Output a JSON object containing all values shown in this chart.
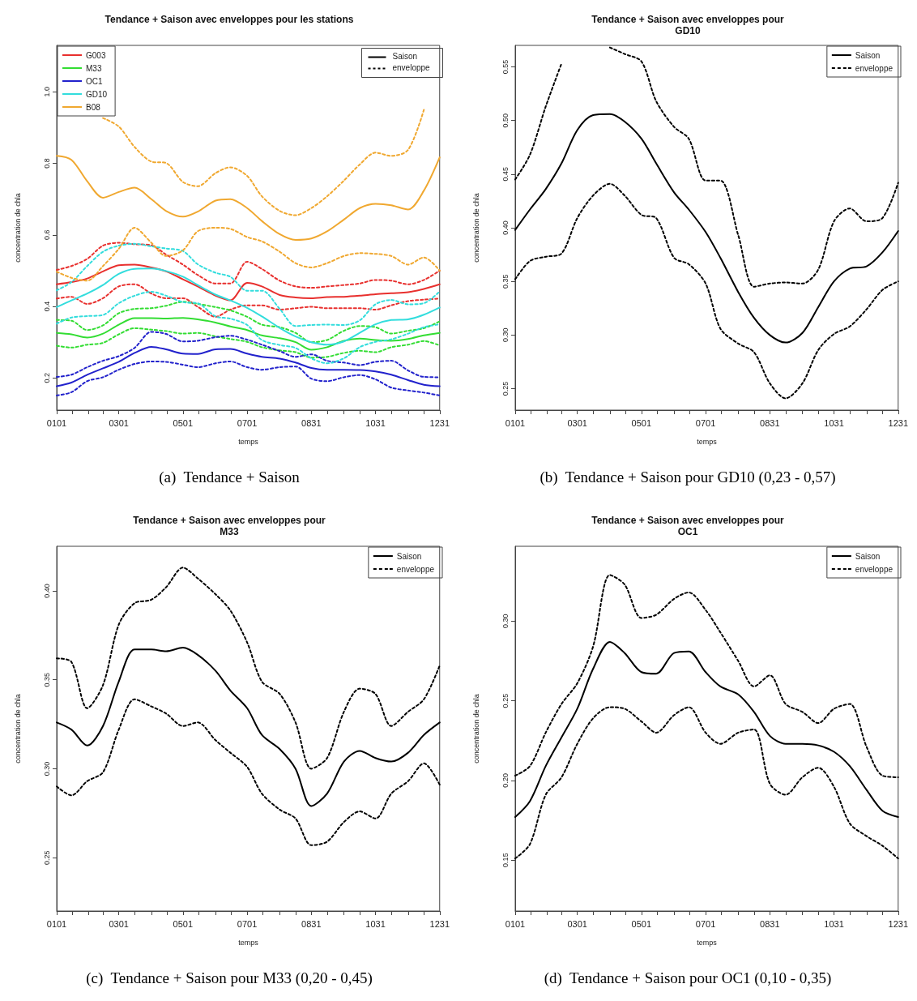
{
  "chart_data": [
    {
      "type": "line",
      "title": "Tendance + Saison avec enveloppes pour les stations",
      "xlabel": "temps",
      "ylabel": "concentration de chla",
      "marker": "none",
      "legend": "top left",
      "annotations": [
        "(a)  Tendance + Saison",
        "Saison",
        "enveloppe"
      ],
      "xlim": [
        "--01-01",
        "--12-31"
      ],
      "xticks": [
        {
          "value": "--01-01",
          "label": "0101"
        },
        {
          "value": "--01-16",
          "label": null
        },
        {
          "value": "--01-31",
          "label": null
        },
        {
          "value": "--02-14",
          "label": null
        },
        {
          "value": "--03-01",
          "label": "0301"
        },
        {
          "value": "--03-16",
          "label": null
        },
        {
          "value": "--04-01",
          "label": null
        },
        {
          "value": "--04-16",
          "label": null
        },
        {
          "value": "--05-01",
          "label": "0501"
        },
        {
          "value": "--05-16",
          "label": null
        },
        {
          "value": "--06-01",
          "label": null
        },
        {
          "value": "--06-16",
          "label": null
        },
        {
          "value": "--07-01",
          "label": "0701"
        },
        {
          "value": "--07-16",
          "label": null
        },
        {
          "value": "--08-01",
          "label": null
        },
        {
          "value": "--08-16",
          "label": null
        },
        {
          "value": "--08-31",
          "label": "0831"
        },
        {
          "value": "--09-15",
          "label": null
        },
        {
          "value": "--10-01",
          "label": null
        },
        {
          "value": "--10-16",
          "label": null
        },
        {
          "value": "--10-31",
          "label": "1031"
        },
        {
          "value": "--11-15",
          "label": null
        },
        {
          "value": "--12-01",
          "label": null
        },
        {
          "value": "--12-16",
          "label": null
        },
        {
          "value": "--12-31",
          "label": "1231"
        }
      ],
      "ylim": [
        0.11,
        1.13
      ],
      "yticks": [
        0.2,
        0.4,
        0.6,
        0.8,
        {
          "value": 1,
          "label": "1.0"
        }
      ],
      "x": [
        "--01-01",
        "--01-15",
        "--01-30",
        "--02-14",
        "--03-01",
        "--03-16",
        "--04-01",
        "--04-15",
        "--05-01",
        "--05-15",
        "--06-01",
        "--06-15",
        "--07-01",
        "--07-15",
        "--08-01",
        "--08-16",
        "--08-31",
        "--09-15",
        "--10-01",
        "--10-16",
        "--10-31",
        "--11-15",
        "--12-01",
        "--12-16",
        "--12-31"
      ],
      "series": [
        {
          "name": "G003",
          "color": "#e8302e",
          "line_style": "solid",
          "values": [
            0.462,
            0.468,
            0.478,
            0.498,
            0.515,
            0.517,
            0.509,
            0.498,
            0.476,
            0.456,
            0.43,
            0.417,
            0.466,
            0.456,
            0.432,
            0.425,
            0.423,
            0.426,
            0.427,
            0.43,
            0.434,
            0.437,
            0.44,
            0.449,
            0.462
          ]
        },
        {
          "color": "#e8302e",
          "line_style": "dotted",
          "values": [
            0.502,
            0.513,
            0.533,
            0.57,
            0.578,
            0.574,
            0.571,
            0.545,
            0.517,
            0.488,
            0.464,
            0.464,
            0.525,
            0.505,
            0.472,
            0.456,
            0.452,
            0.456,
            0.46,
            0.464,
            0.474,
            0.472,
            0.462,
            0.474,
            0.5
          ]
        },
        {
          "color": "#e8302e",
          "line_style": "dotted",
          "values": [
            0.422,
            0.427,
            0.407,
            0.423,
            0.456,
            0.462,
            0.436,
            0.423,
            0.423,
            0.399,
            0.371,
            0.391,
            0.403,
            0.403,
            0.391,
            0.395,
            0.399,
            0.395,
            0.395,
            0.395,
            0.391,
            0.403,
            0.415,
            0.419,
            0.422
          ]
        },
        {
          "name": "M33",
          "color": "#33dd33",
          "line_style": "solid",
          "values": [
            0.326,
            0.322,
            0.313,
            0.324,
            0.349,
            0.367,
            0.367,
            0.366,
            0.368,
            0.364,
            0.355,
            0.344,
            0.334,
            0.319,
            0.311,
            0.3,
            0.279,
            0.286,
            0.304,
            0.31,
            0.306,
            0.304,
            0.309,
            0.319,
            0.326
          ]
        },
        {
          "color": "#33dd33",
          "line_style": "dotted",
          "values": [
            0.362,
            0.36,
            0.334,
            0.347,
            0.381,
            0.393,
            0.395,
            0.402,
            0.413,
            0.407,
            0.398,
            0.389,
            0.371,
            0.349,
            0.342,
            0.326,
            0.3,
            0.306,
            0.332,
            0.345,
            0.342,
            0.324,
            0.332,
            0.339,
            0.358
          ]
        },
        {
          "color": "#33dd33",
          "line_style": "dotted",
          "values": [
            0.29,
            0.285,
            0.293,
            0.298,
            0.322,
            0.339,
            0.335,
            0.331,
            0.324,
            0.326,
            0.316,
            0.309,
            0.301,
            0.286,
            0.277,
            0.272,
            0.257,
            0.259,
            0.27,
            0.276,
            0.272,
            0.286,
            0.293,
            0.303,
            0.291
          ]
        },
        {
          "name": "OC1",
          "color": "#2222cc",
          "line_style": "solid",
          "values": [
            0.177,
            0.187,
            0.209,
            0.227,
            0.245,
            0.27,
            0.287,
            0.28,
            0.268,
            0.267,
            0.28,
            0.281,
            0.268,
            0.259,
            0.254,
            0.243,
            0.228,
            0.223,
            0.223,
            0.222,
            0.218,
            0.209,
            0.194,
            0.181,
            0.177
          ]
        },
        {
          "color": "#2222cc",
          "line_style": "dotted",
          "values": [
            0.203,
            0.209,
            0.23,
            0.248,
            0.261,
            0.284,
            0.329,
            0.323,
            0.302,
            0.304,
            0.314,
            0.318,
            0.307,
            0.293,
            0.275,
            0.259,
            0.266,
            0.248,
            0.243,
            0.236,
            0.245,
            0.248,
            0.221,
            0.203,
            0.202
          ]
        },
        {
          "color": "#2222cc",
          "line_style": "dotted",
          "values": [
            0.151,
            0.16,
            0.191,
            0.202,
            0.223,
            0.239,
            0.246,
            0.245,
            0.237,
            0.23,
            0.241,
            0.246,
            0.23,
            0.223,
            0.23,
            0.232,
            0.198,
            0.191,
            0.202,
            0.208,
            0.196,
            0.173,
            0.165,
            0.159,
            0.151
          ]
        },
        {
          "name": "GD10",
          "color": "#33dddd",
          "line_style": "solid",
          "values": [
            0.398,
            0.417,
            0.436,
            0.46,
            0.491,
            0.505,
            0.506,
            0.499,
            0.483,
            0.46,
            0.433,
            0.417,
            0.396,
            0.372,
            0.34,
            0.316,
            0.3,
            0.293,
            0.302,
            0.326,
            0.35,
            0.362,
            0.364,
            0.377,
            0.397
          ]
        },
        {
          "color": "#33dddd",
          "line_style": "dotted",
          "values": [
            0.445,
            0.468,
            0.513,
            0.553,
            0.57,
            0.575,
            0.568,
            0.562,
            0.555,
            0.518,
            0.494,
            0.483,
            0.444,
            0.444,
            0.393,
            0.345,
            0.348,
            0.349,
            0.348,
            0.361,
            0.406,
            0.418,
            0.406,
            0.409,
            0.442
          ]
        },
        {
          "color": "#33dddd",
          "line_style": "dotted",
          "values": [
            0.352,
            0.369,
            0.373,
            0.376,
            0.409,
            0.43,
            0.441,
            0.43,
            0.412,
            0.409,
            0.372,
            0.366,
            0.348,
            0.306,
            0.292,
            0.284,
            0.255,
            0.241,
            0.255,
            0.286,
            0.301,
            0.308,
            0.324,
            0.342,
            0.35
          ]
        },
        {
          "name": "B08",
          "color": "#f0a830",
          "line_style": "solid",
          "values": [
            0.821,
            0.81,
            0.75,
            0.704,
            0.72,
            0.732,
            0.7,
            0.667,
            0.651,
            0.665,
            0.696,
            0.7,
            0.675,
            0.639,
            0.602,
            0.586,
            0.59,
            0.61,
            0.643,
            0.675,
            0.687,
            0.683,
            0.671,
            0.724,
            0.817
          ]
        },
        {
          "color": "#f0a830",
          "line_style": "dotted",
          "values": [
            null,
            null,
            null,
            0.927,
            0.903,
            0.846,
            0.805,
            0.801,
            0.748,
            0.736,
            0.773,
            0.789,
            0.765,
            0.708,
            0.667,
            0.655,
            0.675,
            0.708,
            0.752,
            0.797,
            0.83,
            0.821,
            0.838,
            0.95,
            null
          ]
        },
        {
          "color": "#f0a830",
          "line_style": "dotted",
          "values": [
            0.497,
            0.48,
            0.472,
            0.513,
            0.561,
            0.62,
            0.578,
            0.541,
            0.557,
            0.61,
            0.62,
            0.617,
            0.594,
            0.582,
            0.553,
            0.521,
            0.509,
            0.521,
            0.541,
            0.549,
            0.547,
            0.541,
            0.517,
            0.537,
            0.5
          ]
        }
      ]
    },
    {
      "type": "line",
      "title": "Tendance + Saison avec enveloppes pour\nGD10",
      "xlabel": "temps",
      "ylabel": "concentration de chla",
      "marker": "none",
      "legend": "top right",
      "annotations": [
        "(b)  Tendance + Saison pour GD10 (0,23 - 0,57)"
      ],
      "xlim": [
        "--01-01",
        "--12-31"
      ],
      "xticks": [
        {
          "value": "--01-01",
          "label": "0101"
        },
        {
          "value": "--01-16",
          "label": null
        },
        {
          "value": "--01-31",
          "label": null
        },
        {
          "value": "--02-14",
          "label": null
        },
        {
          "value": "--03-01",
          "label": "0301"
        },
        {
          "value": "--03-16",
          "label": null
        },
        {
          "value": "--04-01",
          "label": null
        },
        {
          "value": "--04-16",
          "label": null
        },
        {
          "value": "--05-01",
          "label": "0501"
        },
        {
          "value": "--05-16",
          "label": null
        },
        {
          "value": "--06-01",
          "label": null
        },
        {
          "value": "--06-16",
          "label": null
        },
        {
          "value": "--07-01",
          "label": "0701"
        },
        {
          "value": "--07-16",
          "label": null
        },
        {
          "value": "--08-01",
          "label": null
        },
        {
          "value": "--08-16",
          "label": null
        },
        {
          "value": "--08-31",
          "label": "0831"
        },
        {
          "value": "--09-15",
          "label": null
        },
        {
          "value": "--10-01",
          "label": null
        },
        {
          "value": "--10-16",
          "label": null
        },
        {
          "value": "--10-31",
          "label": "1031"
        },
        {
          "value": "--11-15",
          "label": null
        },
        {
          "value": "--12-01",
          "label": null
        },
        {
          "value": "--12-16",
          "label": null
        },
        {
          "value": "--12-31",
          "label": "1231"
        }
      ],
      "ylim": [
        0.23,
        0.57
      ],
      "yticks": [
        0.25,
        {
          "value": 0.3,
          "label": "0.30"
        },
        0.35,
        {
          "value": 0.4,
          "label": "0.40"
        },
        0.45,
        {
          "value": 0.5,
          "label": "0.50"
        },
        0.55
      ],
      "x": [
        "--01-01",
        "--01-15",
        "--01-30",
        "--02-14",
        "--03-01",
        "--03-16",
        "--04-01",
        "--04-15",
        "--05-01",
        "--05-15",
        "--06-01",
        "--06-15",
        "--07-01",
        "--07-15",
        "--08-01",
        "--08-16",
        "--08-31",
        "--09-15",
        "--10-01",
        "--10-16",
        "--10-31",
        "--11-15",
        "--12-01",
        "--12-16",
        "--12-31"
      ],
      "series": [
        {
          "name": "Saison",
          "color": "#000000",
          "line_style": "solid",
          "values": [
            0.398,
            0.417,
            0.436,
            0.46,
            0.491,
            0.505,
            0.506,
            0.499,
            0.483,
            0.46,
            0.433,
            0.417,
            0.396,
            0.372,
            0.34,
            0.316,
            0.3,
            0.293,
            0.302,
            0.326,
            0.35,
            0.362,
            0.364,
            0.377,
            0.397
          ]
        },
        {
          "name": "enveloppe",
          "color": "#000000",
          "line_style": "dotted",
          "values": [
            0.445,
            0.468,
            0.513,
            0.553,
            null,
            null,
            0.568,
            0.562,
            0.555,
            0.518,
            0.494,
            0.483,
            0.444,
            0.444,
            0.393,
            0.345,
            0.348,
            0.349,
            0.348,
            0.361,
            0.406,
            0.418,
            0.406,
            0.409,
            0.442
          ]
        },
        {
          "color": "#000000",
          "line_style": "dotted",
          "values": [
            0.352,
            0.369,
            0.373,
            0.376,
            0.409,
            0.43,
            0.441,
            0.43,
            0.412,
            0.409,
            0.372,
            0.366,
            0.348,
            0.306,
            0.292,
            0.284,
            0.255,
            0.241,
            0.255,
            0.286,
            0.301,
            0.308,
            0.324,
            0.342,
            0.35
          ]
        }
      ]
    },
    {
      "type": "line",
      "title": "Tendance + Saison avec enveloppes pour\nM33",
      "xlabel": "temps",
      "ylabel": "concentration de chla",
      "marker": "none",
      "legend": "top right",
      "annotations": [
        "(c)  Tendance + Saison pour M33 (0,20 - 0,45)"
      ],
      "xlim": [
        "--01-01",
        "--12-31"
      ],
      "xticks": [
        {
          "value": "--01-01",
          "label": "0101"
        },
        {
          "value": "--01-16",
          "label": null
        },
        {
          "value": "--01-31",
          "label": null
        },
        {
          "value": "--02-14",
          "label": null
        },
        {
          "value": "--03-01",
          "label": "0301"
        },
        {
          "value": "--03-16",
          "label": null
        },
        {
          "value": "--04-01",
          "label": null
        },
        {
          "value": "--04-16",
          "label": null
        },
        {
          "value": "--05-01",
          "label": "0501"
        },
        {
          "value": "--05-16",
          "label": null
        },
        {
          "value": "--06-01",
          "label": null
        },
        {
          "value": "--06-16",
          "label": null
        },
        {
          "value": "--07-01",
          "label": "0701"
        },
        {
          "value": "--07-16",
          "label": null
        },
        {
          "value": "--08-01",
          "label": null
        },
        {
          "value": "--08-16",
          "label": null
        },
        {
          "value": "--08-31",
          "label": "0831"
        },
        {
          "value": "--09-15",
          "label": null
        },
        {
          "value": "--10-01",
          "label": null
        },
        {
          "value": "--10-16",
          "label": null
        },
        {
          "value": "--10-31",
          "label": "1031"
        },
        {
          "value": "--11-15",
          "label": null
        },
        {
          "value": "--12-01",
          "label": null
        },
        {
          "value": "--12-16",
          "label": null
        },
        {
          "value": "--12-31",
          "label": "1231"
        }
      ],
      "ylim": [
        0.22,
        0.425
      ],
      "yticks": [
        0.25,
        {
          "value": 0.3,
          "label": "0.30"
        },
        0.35,
        {
          "value": 0.4,
          "label": "0.40"
        }
      ],
      "x": [
        "--01-01",
        "--01-15",
        "--01-30",
        "--02-14",
        "--03-01",
        "--03-16",
        "--04-01",
        "--04-15",
        "--05-01",
        "--05-15",
        "--06-01",
        "--06-15",
        "--07-01",
        "--07-15",
        "--08-01",
        "--08-16",
        "--08-31",
        "--09-15",
        "--10-01",
        "--10-16",
        "--10-31",
        "--11-15",
        "--12-01",
        "--12-16",
        "--12-31"
      ],
      "series": [
        {
          "name": "Saison",
          "color": "#000000",
          "line_style": "solid",
          "values": [
            0.326,
            0.322,
            0.313,
            0.324,
            0.349,
            0.367,
            0.367,
            0.366,
            0.368,
            0.364,
            0.355,
            0.344,
            0.334,
            0.319,
            0.311,
            0.3,
            0.279,
            0.286,
            0.304,
            0.31,
            0.306,
            0.304,
            0.309,
            0.319,
            0.326
          ]
        },
        {
          "name": "enveloppe",
          "color": "#000000",
          "line_style": "dotted",
          "values": [
            0.362,
            0.36,
            0.334,
            0.347,
            0.381,
            0.393,
            0.395,
            0.402,
            0.413,
            0.407,
            0.398,
            0.389,
            0.371,
            0.349,
            0.342,
            0.326,
            0.3,
            0.306,
            0.332,
            0.345,
            0.342,
            0.324,
            0.332,
            0.339,
            0.358
          ]
        },
        {
          "color": "#000000",
          "line_style": "dotted",
          "values": [
            0.29,
            0.285,
            0.293,
            0.298,
            0.322,
            0.339,
            0.335,
            0.331,
            0.324,
            0.326,
            0.316,
            0.309,
            0.301,
            0.286,
            0.277,
            0.272,
            0.257,
            0.259,
            0.27,
            0.276,
            0.272,
            0.286,
            0.293,
            0.303,
            0.291
          ]
        }
      ]
    },
    {
      "type": "line",
      "title": "Tendance + Saison avec enveloppes pour\nOC1",
      "xlabel": "temps",
      "ylabel": "concentration de chla",
      "marker": "none",
      "legend": "top right",
      "annotations": [
        "(d)  Tendance + Saison pour OC1 (0,10 - 0,35)"
      ],
      "xlim": [
        "--01-01",
        "--12-31"
      ],
      "xticks": [
        {
          "value": "--01-01",
          "label": "0101"
        },
        {
          "value": "--01-16",
          "label": null
        },
        {
          "value": "--01-31",
          "label": null
        },
        {
          "value": "--02-14",
          "label": null
        },
        {
          "value": "--03-01",
          "label": "0301"
        },
        {
          "value": "--03-16",
          "label": null
        },
        {
          "value": "--04-01",
          "label": null
        },
        {
          "value": "--04-16",
          "label": null
        },
        {
          "value": "--05-01",
          "label": "0501"
        },
        {
          "value": "--05-16",
          "label": null
        },
        {
          "value": "--06-01",
          "label": null
        },
        {
          "value": "--06-16",
          "label": null
        },
        {
          "value": "--07-01",
          "label": "0701"
        },
        {
          "value": "--07-16",
          "label": null
        },
        {
          "value": "--08-01",
          "label": null
        },
        {
          "value": "--08-16",
          "label": null
        },
        {
          "value": "--08-31",
          "label": "0831"
        },
        {
          "value": "--09-15",
          "label": null
        },
        {
          "value": "--10-01",
          "label": null
        },
        {
          "value": "--10-16",
          "label": null
        },
        {
          "value": "--10-31",
          "label": "1031"
        },
        {
          "value": "--11-15",
          "label": null
        },
        {
          "value": "--12-01",
          "label": null
        },
        {
          "value": "--12-16",
          "label": null
        },
        {
          "value": "--12-31",
          "label": "1231"
        }
      ],
      "ylim": [
        0.118,
        0.347
      ],
      "yticks": [
        0.15,
        {
          "value": 0.2,
          "label": "0.20"
        },
        0.25,
        {
          "value": 0.3,
          "label": "0.30"
        }
      ],
      "x": [
        "--01-01",
        "--01-15",
        "--01-30",
        "--02-14",
        "--03-01",
        "--03-16",
        "--04-01",
        "--04-15",
        "--05-01",
        "--05-15",
        "--06-01",
        "--06-15",
        "--07-01",
        "--07-15",
        "--08-01",
        "--08-16",
        "--08-31",
        "--09-15",
        "--10-01",
        "--10-16",
        "--10-31",
        "--11-15",
        "--12-01",
        "--12-16",
        "--12-31"
      ],
      "series": [
        {
          "name": "Saison",
          "color": "#000000",
          "line_style": "solid",
          "values": [
            0.177,
            0.187,
            0.209,
            0.227,
            0.245,
            0.27,
            0.287,
            0.28,
            0.268,
            0.267,
            0.28,
            0.281,
            0.268,
            0.259,
            0.254,
            0.243,
            0.228,
            0.223,
            0.223,
            0.222,
            0.218,
            0.209,
            0.194,
            0.181,
            0.177
          ]
        },
        {
          "name": "enveloppe",
          "color": "#000000",
          "line_style": "dotted",
          "values": [
            0.203,
            0.209,
            0.23,
            0.248,
            0.261,
            0.284,
            0.329,
            0.323,
            0.302,
            0.304,
            0.314,
            0.318,
            0.307,
            0.293,
            0.275,
            0.259,
            0.266,
            0.248,
            0.243,
            0.236,
            0.245,
            0.248,
            0.221,
            0.203,
            0.202
          ]
        },
        {
          "color": "#000000",
          "line_style": "dotted",
          "values": [
            0.151,
            0.16,
            0.191,
            0.202,
            0.223,
            0.239,
            0.246,
            0.245,
            0.237,
            0.23,
            0.241,
            0.246,
            0.23,
            0.223,
            0.23,
            0.232,
            0.198,
            0.191,
            0.202,
            0.208,
            0.196,
            0.173,
            0.165,
            0.159,
            0.151
          ]
        }
      ]
    }
  ]
}
